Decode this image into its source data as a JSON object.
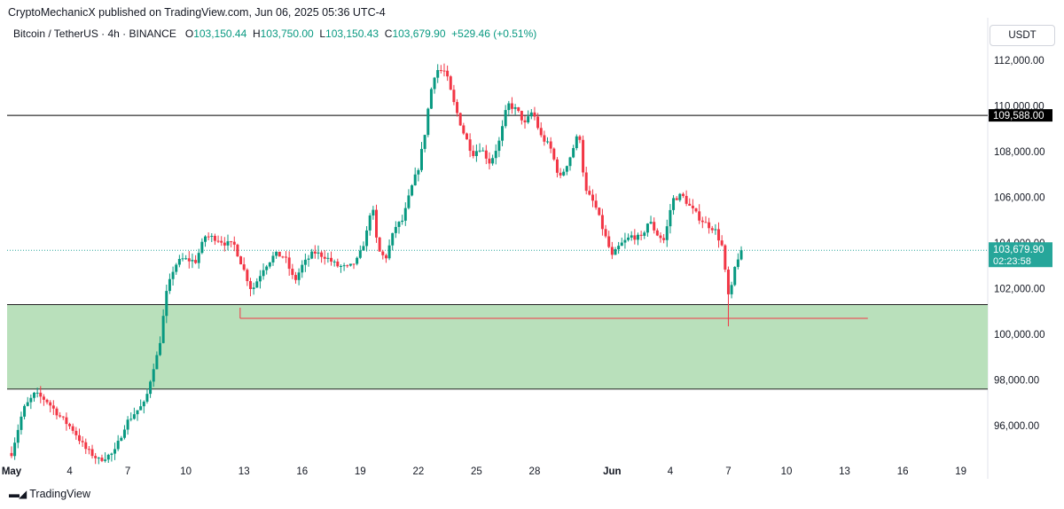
{
  "header": {
    "published": "CryptoMechanicX published on TradingView.com, Jun 06, 2025 05:36 UTC-4",
    "symbol": "Bitcoin / TetherUS · 4h · BINANCE",
    "o_label": "O",
    "o_value": "103,150.44",
    "h_label": "H",
    "h_value": "103,750.00",
    "l_label": "L",
    "l_value": "103,150.43",
    "c_label": "C",
    "c_value": "103,679.90",
    "change": "+529.46 (+0.51%)",
    "currency": "USDT"
  },
  "footer": {
    "brand": "TradingView",
    "logo_icon": "tradingview-logo-icon"
  },
  "colors": {
    "up": "#089981",
    "down": "#f23645",
    "zone_fill": "#b9e0bb",
    "line": "#000000",
    "support_line": "#f23645",
    "price_line": "#26a69a"
  },
  "chart_data": {
    "type": "candlestick",
    "timeframe": "4h",
    "ylim": [
      94200,
      113200
    ],
    "y_ticks": [
      {
        "value": 96000,
        "label": "96,000.00"
      },
      {
        "value": 98000,
        "label": "98,000.00"
      },
      {
        "value": 100000,
        "label": "100,000.00"
      },
      {
        "value": 102000,
        "label": "102,000.00"
      },
      {
        "value": 104000,
        "label": "104,000.00"
      },
      {
        "value": 106000,
        "label": "106,000.00"
      },
      {
        "value": 108000,
        "label": "108,000.00"
      },
      {
        "value": 110000,
        "label": "110,000.00"
      },
      {
        "value": 112000,
        "label": "112,000.00"
      }
    ],
    "x_ticks": [
      {
        "day": 0,
        "label": "May",
        "bold": true
      },
      {
        "day": 3,
        "label": "4"
      },
      {
        "day": 6,
        "label": "7"
      },
      {
        "day": 9,
        "label": "10"
      },
      {
        "day": 12,
        "label": "13"
      },
      {
        "day": 15,
        "label": "16"
      },
      {
        "day": 18,
        "label": "19"
      },
      {
        "day": 21,
        "label": "22"
      },
      {
        "day": 24,
        "label": "25"
      },
      {
        "day": 27,
        "label": "28"
      },
      {
        "day": 31,
        "label": "Jun",
        "bold": true
      },
      {
        "day": 34,
        "label": "4"
      },
      {
        "day": 37,
        "label": "7"
      },
      {
        "day": 40,
        "label": "10"
      },
      {
        "day": 43,
        "label": "13"
      },
      {
        "day": 46,
        "label": "16"
      },
      {
        "day": 49,
        "label": "19"
      }
    ],
    "horizontal_lines": [
      {
        "price": 109588,
        "label": "109,588.00",
        "color": "#000000"
      }
    ],
    "zone": {
      "top": 101300,
      "bottom": 97600
    },
    "support_line": {
      "price": 100700,
      "from_day": 11.8,
      "to_day": 44.2
    },
    "last_price": {
      "price": 103679.9,
      "label": "103,679.90",
      "countdown": "02:23:58"
    },
    "key_points": [
      [
        0.0,
        94800
      ],
      [
        0.6,
        96700
      ],
      [
        1.2,
        97400
      ],
      [
        1.8,
        97100
      ],
      [
        2.5,
        96400
      ],
      [
        3.2,
        95800
      ],
      [
        3.8,
        95000
      ],
      [
        4.5,
        94500
      ],
      [
        5.3,
        94800
      ],
      [
        5.9,
        96100
      ],
      [
        6.4,
        96600
      ],
      [
        6.9,
        97000
      ],
      [
        7.3,
        98500
      ],
      [
        7.6,
        99300
      ],
      [
        8.0,
        101800
      ],
      [
        8.4,
        103000
      ],
      [
        8.8,
        103300
      ],
      [
        9.5,
        103200
      ],
      [
        10.0,
        104300
      ],
      [
        10.6,
        104200
      ],
      [
        11.0,
        104000
      ],
      [
        11.5,
        103900
      ],
      [
        12.0,
        102800
      ],
      [
        12.4,
        101900
      ],
      [
        13.0,
        102900
      ],
      [
        13.6,
        103500
      ],
      [
        14.1,
        103400
      ],
      [
        14.6,
        102300
      ],
      [
        15.0,
        103000
      ],
      [
        15.6,
        103600
      ],
      [
        16.2,
        103400
      ],
      [
        16.8,
        103000
      ],
      [
        17.4,
        102900
      ],
      [
        17.9,
        103300
      ],
      [
        18.3,
        104300
      ],
      [
        18.6,
        105800
      ],
      [
        18.9,
        103700
      ],
      [
        19.3,
        103300
      ],
      [
        19.8,
        104700
      ],
      [
        20.2,
        105000
      ],
      [
        20.6,
        106300
      ],
      [
        21.0,
        107300
      ],
      [
        21.3,
        108600
      ],
      [
        21.6,
        110500
      ],
      [
        21.9,
        111600
      ],
      [
        22.4,
        111500
      ],
      [
        22.8,
        110200
      ],
      [
        23.3,
        108900
      ],
      [
        23.8,
        107900
      ],
      [
        24.2,
        108200
      ],
      [
        24.7,
        107500
      ],
      [
        25.2,
        108500
      ],
      [
        25.6,
        110100
      ],
      [
        26.1,
        109800
      ],
      [
        26.5,
        109200
      ],
      [
        26.9,
        109800
      ],
      [
        27.3,
        108700
      ],
      [
        27.8,
        108200
      ],
      [
        28.3,
        106800
      ],
      [
        28.8,
        107700
      ],
      [
        29.3,
        108900
      ],
      [
        29.6,
        106300
      ],
      [
        30.1,
        105700
      ],
      [
        30.6,
        104400
      ],
      [
        31.0,
        103400
      ],
      [
        31.4,
        103900
      ],
      [
        32.0,
        104300
      ],
      [
        32.5,
        104200
      ],
      [
        32.9,
        105000
      ],
      [
        33.3,
        104400
      ],
      [
        33.7,
        104100
      ],
      [
        34.1,
        105900
      ],
      [
        34.6,
        106100
      ],
      [
        35.0,
        105600
      ],
      [
        35.5,
        105100
      ],
      [
        35.9,
        104800
      ],
      [
        36.3,
        104600
      ],
      [
        36.7,
        103800
      ],
      [
        36.95,
        101800
      ],
      [
        37.1,
        101500
      ],
      [
        37.25,
        102700
      ],
      [
        37.45,
        103200
      ],
      [
        37.6,
        103680
      ]
    ]
  }
}
